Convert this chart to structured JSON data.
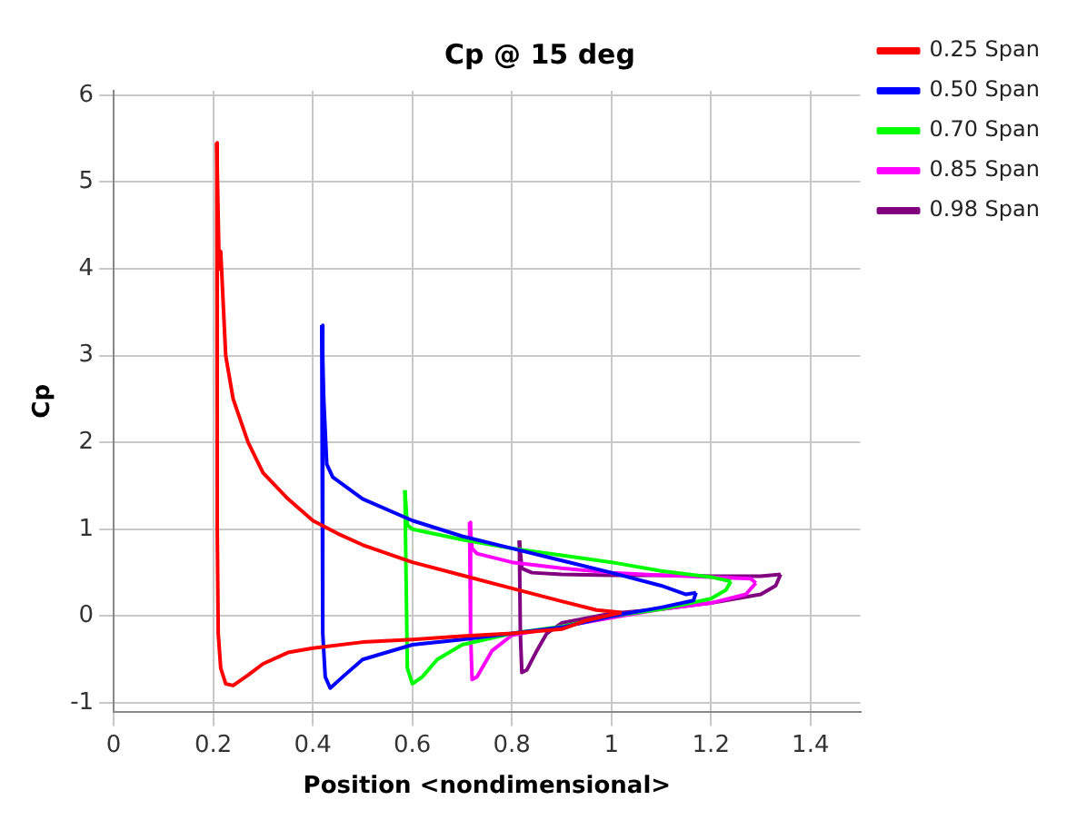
{
  "chart_data": {
    "type": "line",
    "title": "Cp @ 15 deg",
    "xlabel": "Position <nondimensional>",
    "ylabel": "Cp",
    "xlim": [
      0,
      1.5
    ],
    "ylim": [
      -1.1,
      6.05
    ],
    "xticks": [
      0,
      0.2,
      0.4,
      0.6,
      0.8,
      1,
      1.2,
      1.4
    ],
    "yticks": [
      -1,
      0,
      1,
      2,
      3,
      4,
      5,
      6
    ],
    "grid": true,
    "legend": "top right",
    "marker": "none",
    "line_style": "solid",
    "series": [
      {
        "name": "0.25 Span",
        "color": "#ff0000",
        "x": [
          0.207,
          0.212,
          0.215,
          0.225,
          0.24,
          0.27,
          0.3,
          0.35,
          0.4,
          0.45,
          0.5,
          0.6,
          0.7,
          0.8,
          0.9,
          0.97,
          1.02
        ],
        "values": [
          5.45,
          4.0,
          4.2,
          3.0,
          2.5,
          2.0,
          1.65,
          1.35,
          1.1,
          0.95,
          0.82,
          0.62,
          0.47,
          0.32,
          0.17,
          0.07,
          0.04
        ]
      },
      {
        "color": "#ff0000",
        "x": [
          0.207,
          0.208,
          0.21,
          0.215,
          0.225,
          0.24,
          0.27,
          0.3,
          0.35,
          0.4,
          0.5,
          0.6,
          0.7,
          0.8,
          0.9,
          0.95,
          1.02
        ],
        "values": [
          5.45,
          1.0,
          -0.2,
          -0.6,
          -0.78,
          -0.8,
          -0.68,
          -0.55,
          -0.42,
          -0.37,
          -0.3,
          -0.27,
          -0.23,
          -0.2,
          -0.15,
          -0.05,
          0.04
        ]
      },
      {
        "name": "0.50 Span",
        "color": "#0000ff",
        "x": [
          0.418,
          0.422,
          0.428,
          0.44,
          0.5,
          0.6,
          0.7,
          0.8,
          0.9,
          1.0,
          1.1,
          1.15,
          1.17
        ],
        "values": [
          3.35,
          2.5,
          1.75,
          1.6,
          1.35,
          1.1,
          0.92,
          0.78,
          0.64,
          0.5,
          0.35,
          0.25,
          0.27
        ]
      },
      {
        "color": "#0000ff",
        "x": [
          0.418,
          0.42,
          0.425,
          0.435,
          0.46,
          0.5,
          0.6,
          0.7,
          0.8,
          0.9,
          1.0,
          1.1,
          1.165,
          1.17
        ],
        "values": [
          3.35,
          -0.2,
          -0.7,
          -0.83,
          -0.7,
          -0.5,
          -0.33,
          -0.27,
          -0.2,
          -0.13,
          0.0,
          0.1,
          0.18,
          0.27
        ]
      },
      {
        "name": "0.70 Span",
        "color": "#00ff00",
        "x": [
          0.585,
          0.59,
          0.6,
          0.7,
          0.8,
          0.9,
          1.0,
          1.1,
          1.2,
          1.24
        ],
        "values": [
          1.45,
          1.05,
          1.0,
          0.88,
          0.78,
          0.7,
          0.62,
          0.52,
          0.45,
          0.4
        ]
      },
      {
        "color": "#00ff00",
        "x": [
          0.585,
          0.59,
          0.6,
          0.62,
          0.65,
          0.7,
          0.8,
          0.9,
          1.0,
          1.1,
          1.2,
          1.23,
          1.24
        ],
        "values": [
          1.45,
          -0.6,
          -0.78,
          -0.7,
          -0.5,
          -0.33,
          -0.2,
          -0.12,
          0.0,
          0.08,
          0.2,
          0.3,
          0.4
        ]
      },
      {
        "name": "0.85 Span",
        "color": "#ff00ff",
        "x": [
          0.715,
          0.72,
          0.73,
          0.8,
          0.9,
          1.0,
          1.1,
          1.2,
          1.28,
          1.29
        ],
        "values": [
          1.08,
          0.78,
          0.72,
          0.62,
          0.55,
          0.5,
          0.47,
          0.45,
          0.43,
          0.38
        ]
      },
      {
        "color": "#ff00ff",
        "x": [
          0.715,
          0.717,
          0.72,
          0.73,
          0.76,
          0.8,
          0.9,
          1.0,
          1.1,
          1.2,
          1.27,
          1.29
        ],
        "values": [
          1.08,
          -0.2,
          -0.73,
          -0.7,
          -0.4,
          -0.22,
          -0.12,
          -0.02,
          0.08,
          0.15,
          0.25,
          0.38
        ]
      },
      {
        "name": "0.98 Span",
        "color": "#800080",
        "x": [
          0.815,
          0.82,
          0.84,
          0.9,
          1.0,
          1.1,
          1.2,
          1.3,
          1.34
        ],
        "values": [
          0.87,
          0.55,
          0.5,
          0.48,
          0.47,
          0.47,
          0.46,
          0.46,
          0.48
        ]
      },
      {
        "color": "#800080",
        "x": [
          0.815,
          0.817,
          0.82,
          0.83,
          0.85,
          0.87,
          0.9,
          1.0,
          1.1,
          1.2,
          1.3,
          1.33,
          1.34
        ],
        "values": [
          0.87,
          -0.2,
          -0.65,
          -0.62,
          -0.4,
          -0.2,
          -0.08,
          0.03,
          0.08,
          0.15,
          0.25,
          0.35,
          0.48
        ]
      }
    ]
  }
}
